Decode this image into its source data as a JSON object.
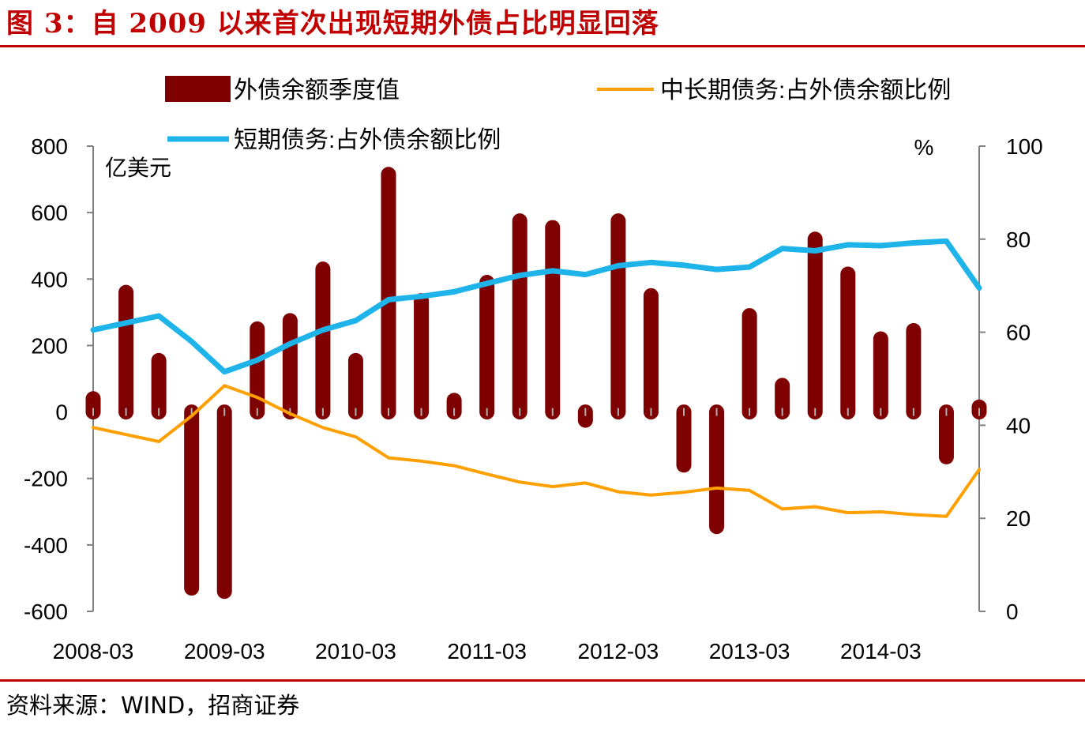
{
  "title": "图 3：自 2009 以来首次出现短期外债占比明显回落",
  "source": "资料来源：WIND，招商证券",
  "colors": {
    "bar": "#7f0000",
    "long_term": "#ffa000",
    "short_term": "#1eb4ea",
    "accent": "#c00000"
  },
  "chart_data": {
    "type": "bar+line",
    "title": "自 2009 以来首次出现短期外债占比明显回落",
    "categories": [
      "2008-03",
      "2008-06",
      "2008-09",
      "2008-12",
      "2009-03",
      "2009-06",
      "2009-09",
      "2009-12",
      "2010-03",
      "2010-06",
      "2010-09",
      "2010-12",
      "2011-03",
      "2011-06",
      "2011-09",
      "2011-12",
      "2012-03",
      "2012-06",
      "2012-09",
      "2012-12",
      "2013-03",
      "2013-06",
      "2013-09",
      "2013-12",
      "2014-03",
      "2014-06",
      "2014-09",
      "2014-12"
    ],
    "x_tick_labels": [
      "2008-03",
      "2009-03",
      "2010-03",
      "2011-03",
      "2012-03",
      "2013-03",
      "2014-03"
    ],
    "left_axis": {
      "unit": "亿美元",
      "ylim": [
        -600,
        800
      ],
      "ticks": [
        "800",
        "600",
        "400",
        "200",
        "0",
        "-200",
        "-400",
        "-600"
      ]
    },
    "right_axis": {
      "unit": "%",
      "ylim": [
        0,
        100
      ],
      "ticks": [
        "100",
        "80",
        "60",
        "40",
        "20",
        "0"
      ]
    },
    "series": [
      {
        "name": "外债余额季度值",
        "type": "bar",
        "axis": "left",
        "values": [
          40,
          360,
          155,
          -530,
          -540,
          250,
          275,
          430,
          155,
          715,
          335,
          35,
          390,
          575,
          555,
          -25,
          575,
          350,
          -160,
          -345,
          290,
          80,
          520,
          415,
          220,
          245,
          -135,
          15
        ]
      },
      {
        "name": "中长期债务:占外债余额比例",
        "type": "line",
        "axis": "right",
        "values": [
          39.5,
          38,
          36.5,
          42,
          48.5,
          46,
          42.5,
          39.5,
          37.5,
          33,
          32.3,
          31.3,
          29.5,
          27.8,
          26.8,
          27.6,
          25.7,
          25,
          25.6,
          26.5,
          26,
          22,
          22.5,
          21.2,
          21.4,
          20.8,
          20.4,
          30.5
        ]
      },
      {
        "name": "短期债务:占外债余额比例",
        "type": "line",
        "axis": "right",
        "values": [
          60.5,
          62,
          63.5,
          58,
          51.5,
          54,
          57.5,
          60.5,
          62.5,
          67,
          67.7,
          68.7,
          70.5,
          72.2,
          73.2,
          72.4,
          74.3,
          75,
          74.4,
          73.5,
          74,
          78,
          77.5,
          78.8,
          78.6,
          79.2,
          79.6,
          69.5
        ]
      }
    ]
  }
}
